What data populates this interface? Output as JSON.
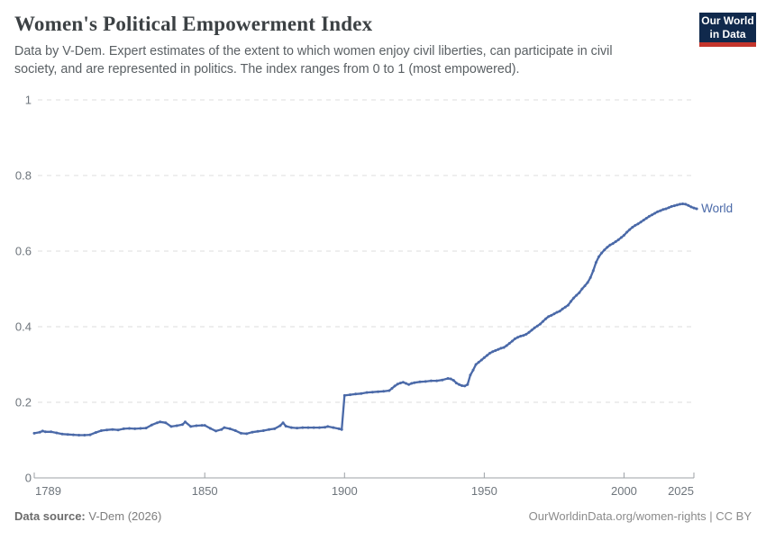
{
  "header": {
    "title": "Women's Political Empowerment Index",
    "subtitle": "Data by V-Dem. Expert estimates of the extent to which women enjoy civil liberties, can participate in civil society, and are represented in politics. The index ranges from 0 to 1 (most empowered).",
    "logo": {
      "line1": "Our World",
      "line2": "in Data",
      "bg": "#10294c",
      "accent": "#c4352c"
    }
  },
  "chart_data": {
    "type": "line",
    "title": "Women's Political Empowerment Index",
    "xlabel": "",
    "ylabel": "",
    "xlim": [
      1789,
      2026
    ],
    "ylim": [
      0,
      1
    ],
    "xticks": [
      1789,
      1850,
      1900,
      1950,
      2000,
      2025
    ],
    "yticks": [
      0,
      0.2,
      0.4,
      0.6,
      0.8,
      1
    ],
    "grid": "horizontal-dashed",
    "legend_position": "end-of-line-label",
    "colors": {
      "grid": "#dedede",
      "axis": "#9ca1a6",
      "tick_text": "#6e757c"
    },
    "series": [
      {
        "name": "World",
        "color": "#4a69a8",
        "points": [
          [
            1789,
            0.118
          ],
          [
            1791,
            0.121
          ],
          [
            1792,
            0.124
          ],
          [
            1793,
            0.122
          ],
          [
            1795,
            0.122
          ],
          [
            1797,
            0.119
          ],
          [
            1799,
            0.116
          ],
          [
            1801,
            0.115
          ],
          [
            1803,
            0.114
          ],
          [
            1805,
            0.113
          ],
          [
            1807,
            0.113
          ],
          [
            1809,
            0.114
          ],
          [
            1811,
            0.12
          ],
          [
            1813,
            0.125
          ],
          [
            1815,
            0.127
          ],
          [
            1817,
            0.128
          ],
          [
            1819,
            0.127
          ],
          [
            1821,
            0.13
          ],
          [
            1823,
            0.131
          ],
          [
            1825,
            0.13
          ],
          [
            1827,
            0.131
          ],
          [
            1829,
            0.132
          ],
          [
            1831,
            0.14
          ],
          [
            1833,
            0.146
          ],
          [
            1834,
            0.148
          ],
          [
            1836,
            0.146
          ],
          [
            1838,
            0.136
          ],
          [
            1840,
            0.138
          ],
          [
            1842,
            0.141
          ],
          [
            1843,
            0.148
          ],
          [
            1845,
            0.136
          ],
          [
            1847,
            0.138
          ],
          [
            1849,
            0.139
          ],
          [
            1850,
            0.139
          ],
          [
            1852,
            0.131
          ],
          [
            1854,
            0.124
          ],
          [
            1856,
            0.128
          ],
          [
            1857,
            0.133
          ],
          [
            1859,
            0.13
          ],
          [
            1861,
            0.125
          ],
          [
            1863,
            0.118
          ],
          [
            1865,
            0.117
          ],
          [
            1867,
            0.121
          ],
          [
            1869,
            0.123
          ],
          [
            1871,
            0.125
          ],
          [
            1873,
            0.128
          ],
          [
            1875,
            0.13
          ],
          [
            1877,
            0.138
          ],
          [
            1878,
            0.146
          ],
          [
            1879,
            0.137
          ],
          [
            1881,
            0.133
          ],
          [
            1883,
            0.132
          ],
          [
            1885,
            0.133
          ],
          [
            1887,
            0.133
          ],
          [
            1889,
            0.133
          ],
          [
            1891,
            0.133
          ],
          [
            1893,
            0.134
          ],
          [
            1894,
            0.136
          ],
          [
            1896,
            0.133
          ],
          [
            1898,
            0.13
          ],
          [
            1899,
            0.128
          ],
          [
            1900,
            0.218
          ],
          [
            1902,
            0.22
          ],
          [
            1904,
            0.222
          ],
          [
            1906,
            0.223
          ],
          [
            1908,
            0.226
          ],
          [
            1910,
            0.227
          ],
          [
            1912,
            0.228
          ],
          [
            1914,
            0.229
          ],
          [
            1916,
            0.231
          ],
          [
            1917,
            0.237
          ],
          [
            1918,
            0.243
          ],
          [
            1919,
            0.248
          ],
          [
            1920,
            0.251
          ],
          [
            1921,
            0.253
          ],
          [
            1922,
            0.25
          ],
          [
            1923,
            0.247
          ],
          [
            1924,
            0.25
          ],
          [
            1925,
            0.252
          ],
          [
            1927,
            0.254
          ],
          [
            1929,
            0.255
          ],
          [
            1931,
            0.257
          ],
          [
            1933,
            0.257
          ],
          [
            1935,
            0.259
          ],
          [
            1937,
            0.263
          ],
          [
            1938,
            0.262
          ],
          [
            1939,
            0.258
          ],
          [
            1940,
            0.251
          ],
          [
            1941,
            0.247
          ],
          [
            1942,
            0.244
          ],
          [
            1943,
            0.243
          ],
          [
            1944,
            0.247
          ],
          [
            1945,
            0.272
          ],
          [
            1946,
            0.285
          ],
          [
            1947,
            0.3
          ],
          [
            1948,
            0.306
          ],
          [
            1949,
            0.312
          ],
          [
            1950,
            0.318
          ],
          [
            1951,
            0.324
          ],
          [
            1952,
            0.33
          ],
          [
            1953,
            0.334
          ],
          [
            1954,
            0.337
          ],
          [
            1955,
            0.34
          ],
          [
            1956,
            0.343
          ],
          [
            1957,
            0.345
          ],
          [
            1958,
            0.35
          ],
          [
            1959,
            0.356
          ],
          [
            1960,
            0.362
          ],
          [
            1961,
            0.368
          ],
          [
            1962,
            0.372
          ],
          [
            1963,
            0.375
          ],
          [
            1964,
            0.377
          ],
          [
            1965,
            0.38
          ],
          [
            1966,
            0.385
          ],
          [
            1967,
            0.391
          ],
          [
            1968,
            0.397
          ],
          [
            1969,
            0.402
          ],
          [
            1970,
            0.407
          ],
          [
            1971,
            0.414
          ],
          [
            1972,
            0.421
          ],
          [
            1973,
            0.427
          ],
          [
            1974,
            0.43
          ],
          [
            1975,
            0.434
          ],
          [
            1976,
            0.438
          ],
          [
            1977,
            0.441
          ],
          [
            1978,
            0.447
          ],
          [
            1979,
            0.452
          ],
          [
            1980,
            0.457
          ],
          [
            1981,
            0.467
          ],
          [
            1982,
            0.476
          ],
          [
            1983,
            0.483
          ],
          [
            1984,
            0.49
          ],
          [
            1985,
            0.5
          ],
          [
            1986,
            0.508
          ],
          [
            1987,
            0.517
          ],
          [
            1988,
            0.53
          ],
          [
            1989,
            0.548
          ],
          [
            1990,
            0.57
          ],
          [
            1991,
            0.585
          ],
          [
            1992,
            0.595
          ],
          [
            1993,
            0.603
          ],
          [
            1994,
            0.61
          ],
          [
            1995,
            0.616
          ],
          [
            1996,
            0.62
          ],
          [
            1997,
            0.625
          ],
          [
            1998,
            0.63
          ],
          [
            1999,
            0.636
          ],
          [
            2000,
            0.642
          ],
          [
            2001,
            0.65
          ],
          [
            2002,
            0.657
          ],
          [
            2003,
            0.663
          ],
          [
            2004,
            0.668
          ],
          [
            2005,
            0.672
          ],
          [
            2006,
            0.677
          ],
          [
            2007,
            0.682
          ],
          [
            2008,
            0.687
          ],
          [
            2009,
            0.692
          ],
          [
            2010,
            0.696
          ],
          [
            2011,
            0.7
          ],
          [
            2012,
            0.704
          ],
          [
            2013,
            0.707
          ],
          [
            2014,
            0.71
          ],
          [
            2015,
            0.712
          ],
          [
            2016,
            0.715
          ],
          [
            2017,
            0.718
          ],
          [
            2018,
            0.72
          ],
          [
            2019,
            0.722
          ],
          [
            2020,
            0.724
          ],
          [
            2021,
            0.725
          ],
          [
            2022,
            0.724
          ],
          [
            2023,
            0.721
          ],
          [
            2024,
            0.717
          ],
          [
            2025,
            0.714
          ],
          [
            2026,
            0.712
          ]
        ]
      }
    ]
  },
  "footer": {
    "source_label": "Data source:",
    "source_value": " V-Dem (2026)",
    "right_text": "OurWorldinData.org/women-rights | CC BY"
  }
}
